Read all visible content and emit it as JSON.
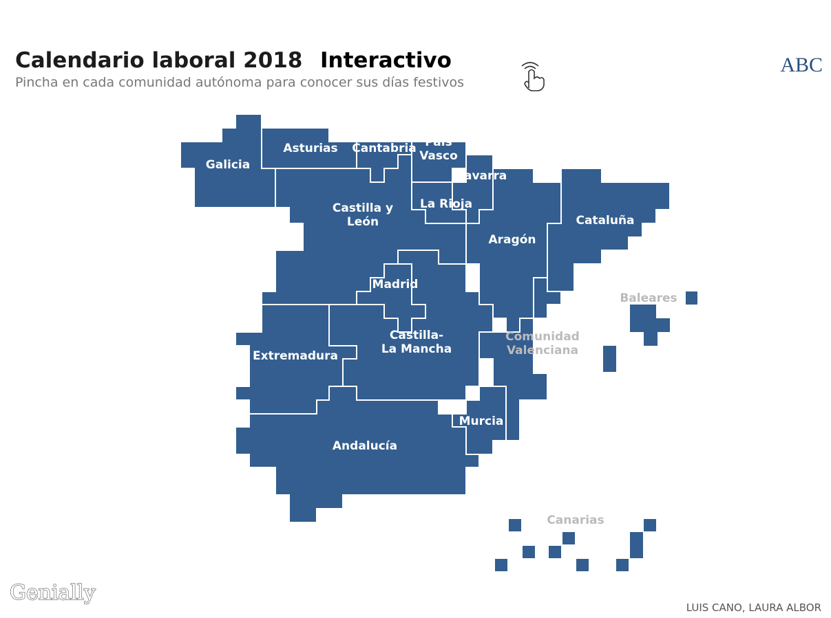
{
  "header": {
    "title": "Calendario laboral 2018",
    "badge": "Interactivo",
    "subtitle": "Pincha en cada comunidad autónoma para conocer sus días festivos",
    "brand": "ABC"
  },
  "regions": [
    {
      "lines": [
        "Galicia"
      ]
    },
    {
      "lines": [
        "Asturias"
      ]
    },
    {
      "lines": [
        "Cantabria"
      ]
    },
    {
      "lines": [
        "País",
        "Vasco"
      ]
    },
    {
      "lines": [
        "Navarra"
      ]
    },
    {
      "lines": [
        "La Rioja"
      ]
    },
    {
      "lines": [
        "Castilla y",
        "León"
      ]
    },
    {
      "lines": [
        "Madrid"
      ]
    },
    {
      "lines": [
        "Aragón"
      ]
    },
    {
      "lines": [
        "Cataluña"
      ]
    },
    {
      "lines": [
        "Comunidad",
        "Valenciana"
      ]
    },
    {
      "lines": [
        "Castilla-",
        "La Mancha"
      ]
    },
    {
      "lines": [
        "Extremadura"
      ]
    },
    {
      "lines": [
        "Murcia"
      ]
    },
    {
      "lines": [
        "Andalucía"
      ]
    },
    {
      "lines": [
        "Baleares"
      ]
    },
    {
      "lines": [
        "Canarias"
      ]
    }
  ],
  "footer": {
    "credits": "LUIS CANO, LAURA ALBOR",
    "logo": "Genially"
  }
}
